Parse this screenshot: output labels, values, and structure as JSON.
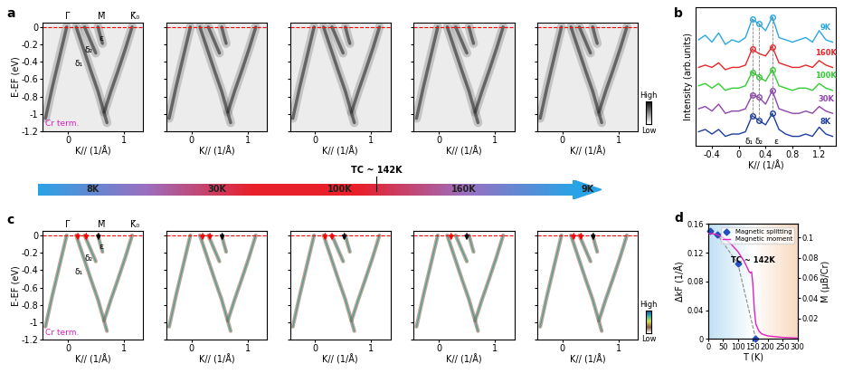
{
  "panel_labels": [
    "a",
    "b",
    "c",
    "d"
  ],
  "maps": {
    "xlabel": "K// (1/Å)",
    "ylabel": "E-EF (eV)",
    "xlim": [
      -0.45,
      1.35
    ],
    "ylim": [
      -1.2,
      0.05
    ],
    "xticks": [
      0,
      1
    ],
    "yticks": [
      0,
      -0.2,
      -0.4,
      -0.6,
      -0.8,
      -1,
      -1.2
    ],
    "fermi_level": 0,
    "symmetry_points": [
      {
        "label": "Γ̄",
        "k": 0
      },
      {
        "label": "M̄",
        "k": 0.6
      },
      {
        "label": "K̄₀",
        "k": 1.2
      }
    ],
    "band_labels": [
      {
        "text": "δ₁",
        "k": 0.27,
        "E": -0.42
      },
      {
        "text": "δ₂",
        "k": 0.44,
        "E": -0.27
      },
      {
        "text": "ε",
        "k": 0.64,
        "E": -0.13
      }
    ],
    "termination": "Cr term.",
    "colorbar_labels": {
      "high": "High",
      "low": "Low"
    },
    "bands": [
      {
        "k": [
          -0.02,
          -0.15,
          -0.28,
          -0.4
        ],
        "E": [
          0,
          -0.35,
          -0.7,
          -1.05
        ]
      },
      {
        "k": [
          0.15,
          0.28,
          0.41,
          0.54,
          0.7
        ],
        "E": [
          0,
          -0.25,
          -0.5,
          -0.74,
          -1.1
        ]
      },
      {
        "k": [
          0.3,
          0.4,
          0.5
        ],
        "E": [
          0,
          -0.15,
          -0.3
        ]
      },
      {
        "k": [
          0.54,
          0.58,
          0.62
        ],
        "E": [
          0,
          -0.1,
          -0.19
        ]
      },
      {
        "k": [
          1.15,
          1.03,
          0.9,
          0.77,
          0.65
        ],
        "E": [
          0,
          -0.25,
          -0.5,
          -0.74,
          -0.98
        ]
      }
    ]
  },
  "temperature_bar": {
    "labels": [
      "8K",
      "30K",
      "100K",
      "160K",
      "9K"
    ],
    "tc_label": "TC ~ 142K"
  },
  "arrows_c": [
    {
      "red": [
        0.18,
        0.33
      ],
      "black": [
        0.55
      ]
    },
    {
      "red": [
        0.2,
        0.33
      ],
      "black": [
        0.55
      ]
    },
    {
      "red": [
        0.18,
        0.3
      ],
      "black": [
        0.52
      ]
    },
    {
      "red": [
        0.22
      ],
      "black": [
        0.5
      ]
    },
    {
      "red": [
        0.2,
        0.33
      ],
      "black": [
        0.55
      ]
    }
  ],
  "chart_data": [
    {
      "type": "line",
      "xlabel": "K// (1/Å)",
      "ylabel": "Intensity (arb.units)",
      "x": [
        -0.6,
        -0.5,
        -0.4,
        -0.3,
        -0.2,
        -0.1,
        0,
        0.1,
        0.2,
        0.3,
        0.4,
        0.5,
        0.6,
        0.7,
        0.8,
        0.9,
        1.0,
        1.1,
        1.2,
        1.3,
        1.4
      ],
      "xlim": [
        -0.65,
        1.45
      ],
      "ylim": [
        0.4,
        6.4
      ],
      "xticks": [
        -0.4,
        0,
        0.4,
        0.8,
        1.2
      ],
      "tick_labels": "x",
      "series": [
        {
          "name": "9K",
          "color": "#29a8e0",
          "peaks": [
            0.2,
            0.3,
            0.5
          ],
          "values": [
            5.0,
            5.2,
            4.9,
            5.3,
            4.8,
            5.0,
            4.9,
            5.1,
            5.9,
            5.7,
            5.4,
            6.0,
            5.1,
            5.0,
            4.9,
            5.0,
            5.1,
            4.9,
            5.4,
            5.0,
            4.9
          ]
        },
        {
          "name": "160K",
          "color": "#e8262a",
          "peaks": [
            0.2,
            0.5
          ],
          "values": [
            3.8,
            3.9,
            3.8,
            4.0,
            3.7,
            3.8,
            3.8,
            3.9,
            4.6,
            4.4,
            4.3,
            4.7,
            4.0,
            3.9,
            3.8,
            3.8,
            3.9,
            3.8,
            4.1,
            3.9,
            3.8
          ]
        },
        {
          "name": "100K",
          "color": "#33cc33",
          "peaks": [
            0.2,
            0.3,
            0.5
          ],
          "values": [
            3.0,
            3.1,
            2.9,
            3.1,
            2.8,
            2.9,
            2.9,
            3.0,
            3.6,
            3.4,
            3.2,
            3.7,
            3.0,
            2.9,
            2.8,
            2.9,
            2.9,
            2.8,
            3.1,
            2.9,
            2.8
          ]
        },
        {
          "name": "30K",
          "color": "#8e44ad",
          "peaks": [
            0.2,
            0.3,
            0.5
          ],
          "values": [
            2.0,
            2.1,
            1.9,
            2.2,
            1.8,
            1.9,
            1.9,
            2.0,
            2.6,
            2.5,
            2.2,
            2.8,
            2.0,
            1.9,
            1.8,
            1.8,
            1.9,
            1.8,
            2.1,
            1.9,
            1.8
          ]
        },
        {
          "name": "8K",
          "color": "#1f3d9e",
          "peaks": [
            0.2,
            0.3,
            0.5
          ],
          "values": [
            1.0,
            1.1,
            0.9,
            1.1,
            0.8,
            0.9,
            0.9,
            1.0,
            1.7,
            1.5,
            1.3,
            1.8,
            1.1,
            0.9,
            0.8,
            0.8,
            0.9,
            0.8,
            1.2,
            0.9,
            0.8
          ]
        }
      ],
      "annotations": [
        {
          "text": "δ₁",
          "x": 0.15,
          "y": 0.55
        },
        {
          "text": "δ₂",
          "x": 0.3,
          "y": 0.55
        },
        {
          "text": "ε",
          "x": 0.55,
          "y": 0.55
        }
      ]
    },
    {
      "type": "line",
      "xlabel": "T (K)",
      "ylabel": "ΔkF (1/Å)",
      "y2label": "M (μB/Cr)",
      "xlim": [
        0,
        300
      ],
      "xticks": [
        0,
        50,
        100,
        150,
        200,
        250,
        300
      ],
      "ylim": [
        0,
        0.16
      ],
      "yticks": [
        0,
        0.04,
        0.08,
        0.12,
        0.16
      ],
      "y2lim": [
        0,
        0.113
      ],
      "y2ticks": [
        0.02,
        0.04,
        0.06,
        0.08,
        0.1
      ],
      "legend": "upper right",
      "series": [
        {
          "name": "Magnetic splitting",
          "type": "scatter",
          "marker": "diamond",
          "color": "#1f4fc0",
          "x": [
            8,
            30,
            100,
            160
          ],
          "values": [
            0.15,
            0.146,
            0.105,
            0.0
          ]
        },
        {
          "name": "Magnetic moment",
          "type": "line",
          "color": "#e020c0",
          "axis": "y2",
          "x": [
            0,
            25,
            50,
            75,
            100,
            120,
            130,
            138,
            142,
            146,
            150,
            155,
            160,
            170,
            180,
            200,
            250,
            300
          ],
          "values": [
            0.104,
            0.103,
            0.1,
            0.094,
            0.086,
            0.077,
            0.071,
            0.066,
            0.065,
            0.066,
            0.055,
            0.03,
            0.015,
            0.008,
            0.005,
            0.003,
            0.0015,
            0.001
          ]
        }
      ],
      "annotations": [
        {
          "text": "TC ~ 142K",
          "x": 150,
          "y": 0.11
        }
      ]
    }
  ]
}
